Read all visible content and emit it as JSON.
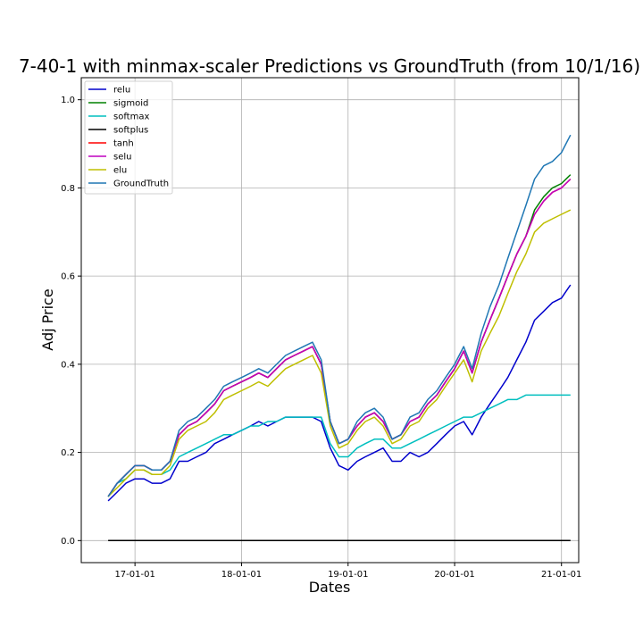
{
  "chart_data": {
    "type": "line",
    "title": "7-40-1 with minmax-scaler Predictions vs GroundTruth (from 10/1/16)",
    "xlabel": "Dates",
    "ylabel": "Adj Price",
    "x_ticks": [
      "17-01-01",
      "18-01-01",
      "19-01-01",
      "20-01-01",
      "21-01-01"
    ],
    "y_ticks": [
      "0.0",
      "0.2",
      "0.4",
      "0.6",
      "0.8",
      "1.0"
    ],
    "ylim": [
      -0.05,
      1.05
    ],
    "xlim": [
      "2016-07-01",
      "2021-03-01"
    ],
    "grid": true,
    "legend_position": "top-left",
    "x": [
      "2016-10-01",
      "2016-11-01",
      "2016-12-01",
      "2017-01-01",
      "2017-02-01",
      "2017-03-01",
      "2017-04-01",
      "2017-05-01",
      "2017-06-01",
      "2017-07-01",
      "2017-08-01",
      "2017-09-01",
      "2017-10-01",
      "2017-11-01",
      "2017-12-01",
      "2018-01-01",
      "2018-02-01",
      "2018-03-01",
      "2018-04-01",
      "2018-05-01",
      "2018-06-01",
      "2018-07-01",
      "2018-08-01",
      "2018-09-01",
      "2018-10-01",
      "2018-11-01",
      "2018-12-01",
      "2019-01-01",
      "2019-02-01",
      "2019-03-01",
      "2019-04-01",
      "2019-05-01",
      "2019-06-01",
      "2019-07-01",
      "2019-08-01",
      "2019-09-01",
      "2019-10-01",
      "2019-11-01",
      "2019-12-01",
      "2020-01-01",
      "2020-02-01",
      "2020-03-01",
      "2020-04-01",
      "2020-05-01",
      "2020-06-01",
      "2020-07-01",
      "2020-08-01",
      "2020-09-01",
      "2020-10-01",
      "2020-11-01",
      "2020-12-01",
      "2021-01-01",
      "2021-02-01"
    ],
    "series": [
      {
        "name": "relu",
        "color": "#0000cc",
        "values": [
          0.09,
          0.11,
          0.13,
          0.14,
          0.14,
          0.13,
          0.13,
          0.14,
          0.18,
          0.18,
          0.19,
          0.2,
          0.22,
          0.23,
          0.24,
          0.25,
          0.26,
          0.27,
          0.26,
          0.27,
          0.28,
          0.28,
          0.28,
          0.28,
          0.27,
          0.21,
          0.17,
          0.16,
          0.18,
          0.19,
          0.2,
          0.21,
          0.18,
          0.18,
          0.2,
          0.19,
          0.2,
          0.22,
          0.24,
          0.26,
          0.27,
          0.24,
          0.28,
          0.31,
          0.34,
          0.37,
          0.41,
          0.45,
          0.5,
          0.52,
          0.54,
          0.55,
          0.58
        ]
      },
      {
        "name": "sigmoid",
        "color": "#008000",
        "values": [
          0.1,
          0.13,
          0.15,
          0.17,
          0.17,
          0.16,
          0.16,
          0.18,
          0.24,
          0.26,
          0.27,
          0.29,
          0.31,
          0.34,
          0.35,
          0.36,
          0.37,
          0.38,
          0.37,
          0.39,
          0.41,
          0.42,
          0.43,
          0.44,
          0.4,
          0.27,
          0.22,
          0.23,
          0.26,
          0.28,
          0.29,
          0.27,
          0.23,
          0.24,
          0.27,
          0.28,
          0.31,
          0.33,
          0.36,
          0.39,
          0.43,
          0.38,
          0.45,
          0.5,
          0.55,
          0.6,
          0.65,
          0.69,
          0.75,
          0.78,
          0.8,
          0.81,
          0.83
        ]
      },
      {
        "name": "softmax",
        "color": "#00bfbf",
        "values": [
          0.1,
          0.13,
          0.14,
          0.16,
          0.16,
          0.15,
          0.15,
          0.16,
          0.19,
          0.2,
          0.21,
          0.22,
          0.23,
          0.24,
          0.24,
          0.25,
          0.26,
          0.26,
          0.27,
          0.27,
          0.28,
          0.28,
          0.28,
          0.28,
          0.28,
          0.22,
          0.19,
          0.19,
          0.21,
          0.22,
          0.23,
          0.23,
          0.21,
          0.21,
          0.22,
          0.23,
          0.24,
          0.25,
          0.26,
          0.27,
          0.28,
          0.28,
          0.29,
          0.3,
          0.31,
          0.32,
          0.32,
          0.33,
          0.33,
          0.33,
          0.33,
          0.33,
          0.33
        ]
      },
      {
        "name": "softplus",
        "color": "#000000",
        "values": [
          0,
          0,
          0,
          0,
          0,
          0,
          0,
          0,
          0,
          0,
          0,
          0,
          0,
          0,
          0,
          0,
          0,
          0,
          0,
          0,
          0,
          0,
          0,
          0,
          0,
          0,
          0,
          0,
          0,
          0,
          0,
          0,
          0,
          0,
          0,
          0,
          0,
          0,
          0,
          0,
          0,
          0,
          0,
          0,
          0,
          0,
          0,
          0,
          0,
          0,
          0,
          0,
          0
        ]
      },
      {
        "name": "tanh",
        "color": "#ff0000",
        "values": [
          0.1,
          0.13,
          0.15,
          0.17,
          0.17,
          0.16,
          0.16,
          0.18,
          0.24,
          0.26,
          0.27,
          0.29,
          0.31,
          0.34,
          0.35,
          0.36,
          0.37,
          0.38,
          0.37,
          0.39,
          0.41,
          0.42,
          0.43,
          0.44,
          0.4,
          0.27,
          0.22,
          0.23,
          0.26,
          0.28,
          0.29,
          0.27,
          0.23,
          0.24,
          0.27,
          0.28,
          0.31,
          0.33,
          0.36,
          0.39,
          0.43,
          0.38,
          0.45,
          0.5,
          0.55,
          0.6,
          0.65,
          0.69,
          0.74,
          0.77,
          0.79,
          0.8,
          0.82
        ]
      },
      {
        "name": "selu",
        "color": "#bf00bf",
        "values": [
          0.1,
          0.13,
          0.15,
          0.17,
          0.17,
          0.16,
          0.16,
          0.18,
          0.24,
          0.26,
          0.27,
          0.29,
          0.31,
          0.34,
          0.35,
          0.36,
          0.37,
          0.38,
          0.37,
          0.39,
          0.41,
          0.42,
          0.43,
          0.44,
          0.4,
          0.27,
          0.22,
          0.23,
          0.26,
          0.28,
          0.29,
          0.27,
          0.23,
          0.24,
          0.27,
          0.28,
          0.31,
          0.33,
          0.36,
          0.39,
          0.43,
          0.38,
          0.45,
          0.5,
          0.55,
          0.6,
          0.65,
          0.69,
          0.74,
          0.77,
          0.79,
          0.8,
          0.82
        ]
      },
      {
        "name": "elu",
        "color": "#bfbf00",
        "values": [
          0.1,
          0.12,
          0.14,
          0.16,
          0.16,
          0.15,
          0.15,
          0.17,
          0.23,
          0.25,
          0.26,
          0.27,
          0.29,
          0.32,
          0.33,
          0.34,
          0.35,
          0.36,
          0.35,
          0.37,
          0.39,
          0.4,
          0.41,
          0.42,
          0.38,
          0.26,
          0.21,
          0.22,
          0.25,
          0.27,
          0.28,
          0.26,
          0.22,
          0.23,
          0.26,
          0.27,
          0.3,
          0.32,
          0.35,
          0.38,
          0.41,
          0.36,
          0.43,
          0.47,
          0.51,
          0.56,
          0.61,
          0.65,
          0.7,
          0.72,
          0.73,
          0.74,
          0.75
        ]
      },
      {
        "name": "GroundTruth",
        "color": "#1f77b4",
        "values": [
          0.1,
          0.13,
          0.15,
          0.17,
          0.17,
          0.16,
          0.16,
          0.18,
          0.25,
          0.27,
          0.28,
          0.3,
          0.32,
          0.35,
          0.36,
          0.37,
          0.38,
          0.39,
          0.38,
          0.4,
          0.42,
          0.43,
          0.44,
          0.45,
          0.41,
          0.27,
          0.22,
          0.23,
          0.27,
          0.29,
          0.3,
          0.28,
          0.23,
          0.24,
          0.28,
          0.29,
          0.32,
          0.34,
          0.37,
          0.4,
          0.44,
          0.39,
          0.47,
          0.53,
          0.58,
          0.64,
          0.7,
          0.76,
          0.82,
          0.85,
          0.86,
          0.88,
          0.92
        ]
      }
    ]
  }
}
